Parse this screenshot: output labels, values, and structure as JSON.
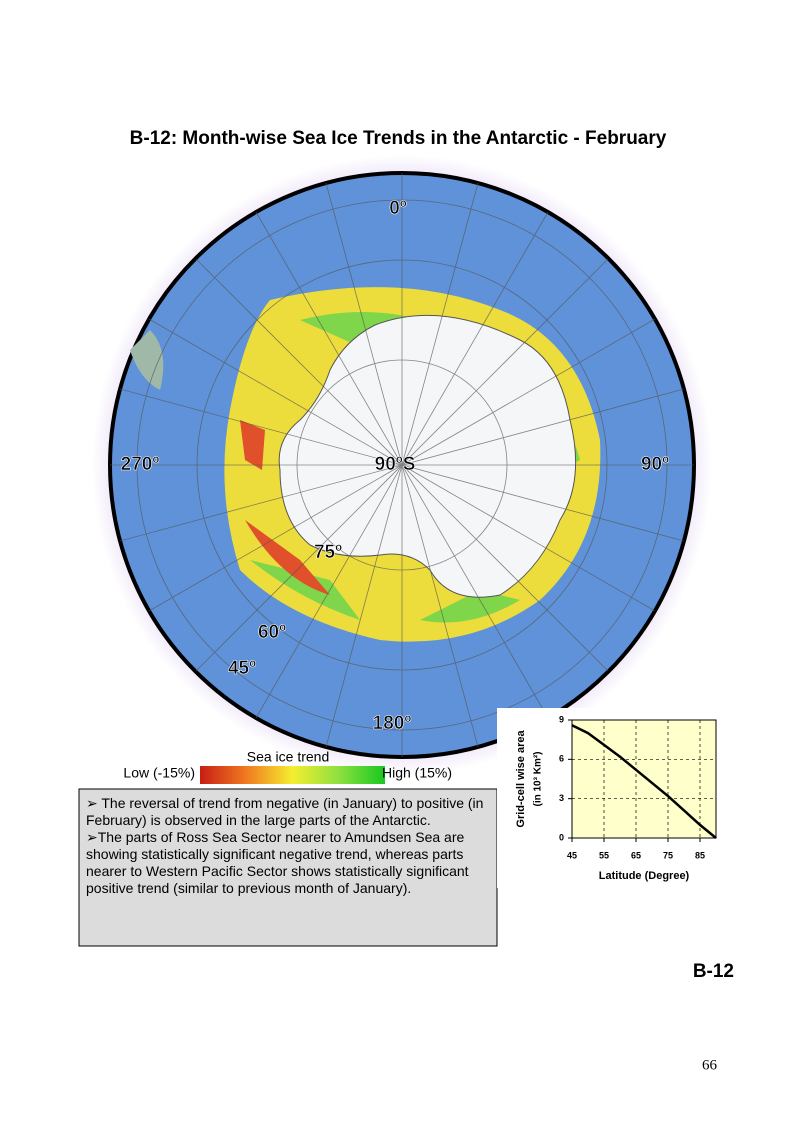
{
  "title": "B-12: Month-wise Sea Ice Trends in the Antarctic - February",
  "map": {
    "labels": {
      "north": "0º",
      "east": "90º",
      "south": "180º",
      "west": "270º",
      "pole": "90ºS",
      "lat75": "75º",
      "lat60": "60º",
      "lat45": "45º"
    }
  },
  "legend": {
    "title": "Sea ice trend",
    "low": "Low (-15%)",
    "high": "High (15%)"
  },
  "notes": [
    "➢ The reversal of trend from negative (in January) to positive (in February) is observed in the large parts of the Antarctic.",
    "➢The parts of Ross Sea Sector nearer to Amundsen Sea are showing statistically significant negative trend, whereas parts nearer to Western Pacific Sector shows statistically significant positive trend (similar to previous month of January)."
  ],
  "chart_data": {
    "type": "line",
    "x_label": "Latitude (Degree)",
    "y_label": "Grid-cell wise area",
    "y_label_unit": "(in 10³ Km²)",
    "x": [
      45,
      50,
      55,
      60,
      65,
      70,
      75,
      80,
      85,
      90
    ],
    "series": [
      {
        "color": "#000000",
        "values": [
          8.6,
          8.0,
          7.1,
          6.2,
          5.2,
          4.2,
          3.2,
          2.1,
          1.0,
          0
        ]
      }
    ],
    "xlim": [
      45,
      90
    ],
    "xticks": [
      45,
      55,
      65,
      75,
      85
    ],
    "ylim": [
      0,
      9
    ],
    "yticks": [
      0,
      3,
      6,
      9
    ],
    "grid": true,
    "background": "#ffffcc"
  },
  "page_label": "B-12",
  "page_number": "66"
}
